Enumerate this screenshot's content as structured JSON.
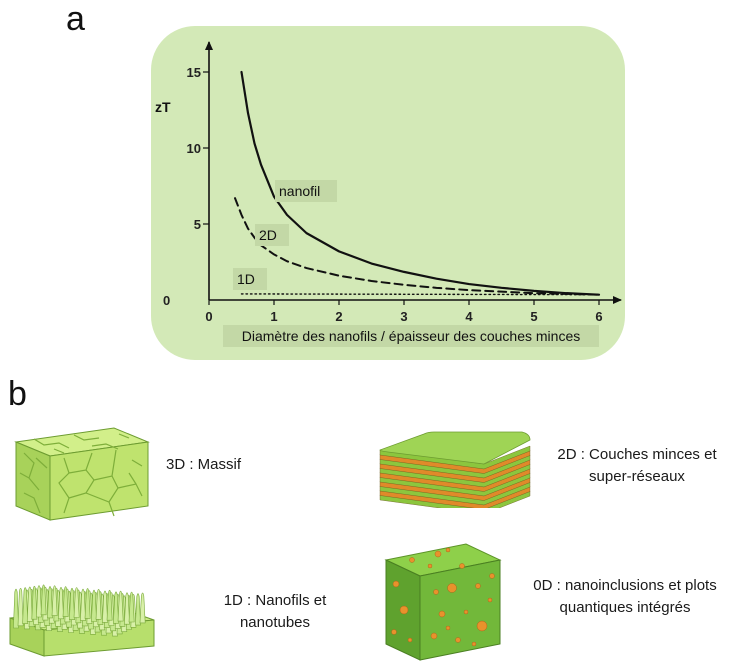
{
  "panel_a_letter": "a",
  "panel_b_letter": "b",
  "chart_data": {
    "type": "line",
    "title": "",
    "xlabel": "Diamètre des nanofils / épaisseur des couches minces",
    "ylabel": "zT",
    "xlim": [
      0,
      6
    ],
    "ylim": [
      0,
      15
    ],
    "x_ticks": [
      "0",
      "1",
      "2",
      "3",
      "4",
      "5",
      "6"
    ],
    "y_ticks": [
      "0",
      "5",
      "10",
      "15"
    ],
    "grid": false,
    "series": [
      {
        "name": "nanofil",
        "style": "solid",
        "color": "#111111",
        "x": [
          0.5,
          0.6,
          0.7,
          0.8,
          1.0,
          1.2,
          1.5,
          2.0,
          2.5,
          3.0,
          3.5,
          4.0,
          4.5,
          5.0,
          5.5,
          6.0
        ],
        "y": [
          15.0,
          12.3,
          10.3,
          8.9,
          6.8,
          5.6,
          4.4,
          3.2,
          2.4,
          1.85,
          1.4,
          1.05,
          0.8,
          0.6,
          0.45,
          0.35
        ]
      },
      {
        "name": "2D",
        "style": "dashed",
        "color": "#111111",
        "x": [
          0.4,
          0.5,
          0.6,
          0.7,
          0.8,
          1.0,
          1.2,
          1.5,
          2.0,
          2.5,
          3.0,
          3.5,
          4.0,
          4.5,
          5.0,
          5.5,
          6.0
        ],
        "y": [
          6.7,
          5.6,
          4.7,
          4.1,
          3.6,
          3.0,
          2.55,
          2.1,
          1.6,
          1.25,
          1.0,
          0.8,
          0.65,
          0.55,
          0.45,
          0.4,
          0.35
        ]
      },
      {
        "name": "1D",
        "style": "dotted",
        "color": "#111111",
        "x": [
          0.5,
          6.0
        ],
        "y": [
          0.4,
          0.35
        ]
      }
    ],
    "annotations": [
      "nanofil",
      "2D",
      "1D"
    ]
  },
  "panel_b": {
    "items": [
      {
        "label": "3D : Massif",
        "icon": "bulk-block-icon"
      },
      {
        "label": "2D : Couches minces et super-réseaux",
        "icon": "layered-stack-icon"
      },
      {
        "label": "1D : Nanofils et nanotubes",
        "icon": "nanowire-array-icon"
      },
      {
        "label": "0D : nanoinclusions et plots quantiques intégrés",
        "icon": "dotted-cube-icon"
      }
    ]
  },
  "colors": {
    "chart_bg": "#d3e9b7",
    "label_bg": "#c3d8a6",
    "green_light": "#b9e26b",
    "green_mid": "#8cc63e",
    "green_dark": "#5d9a2a",
    "orange": "#e08a2a"
  }
}
